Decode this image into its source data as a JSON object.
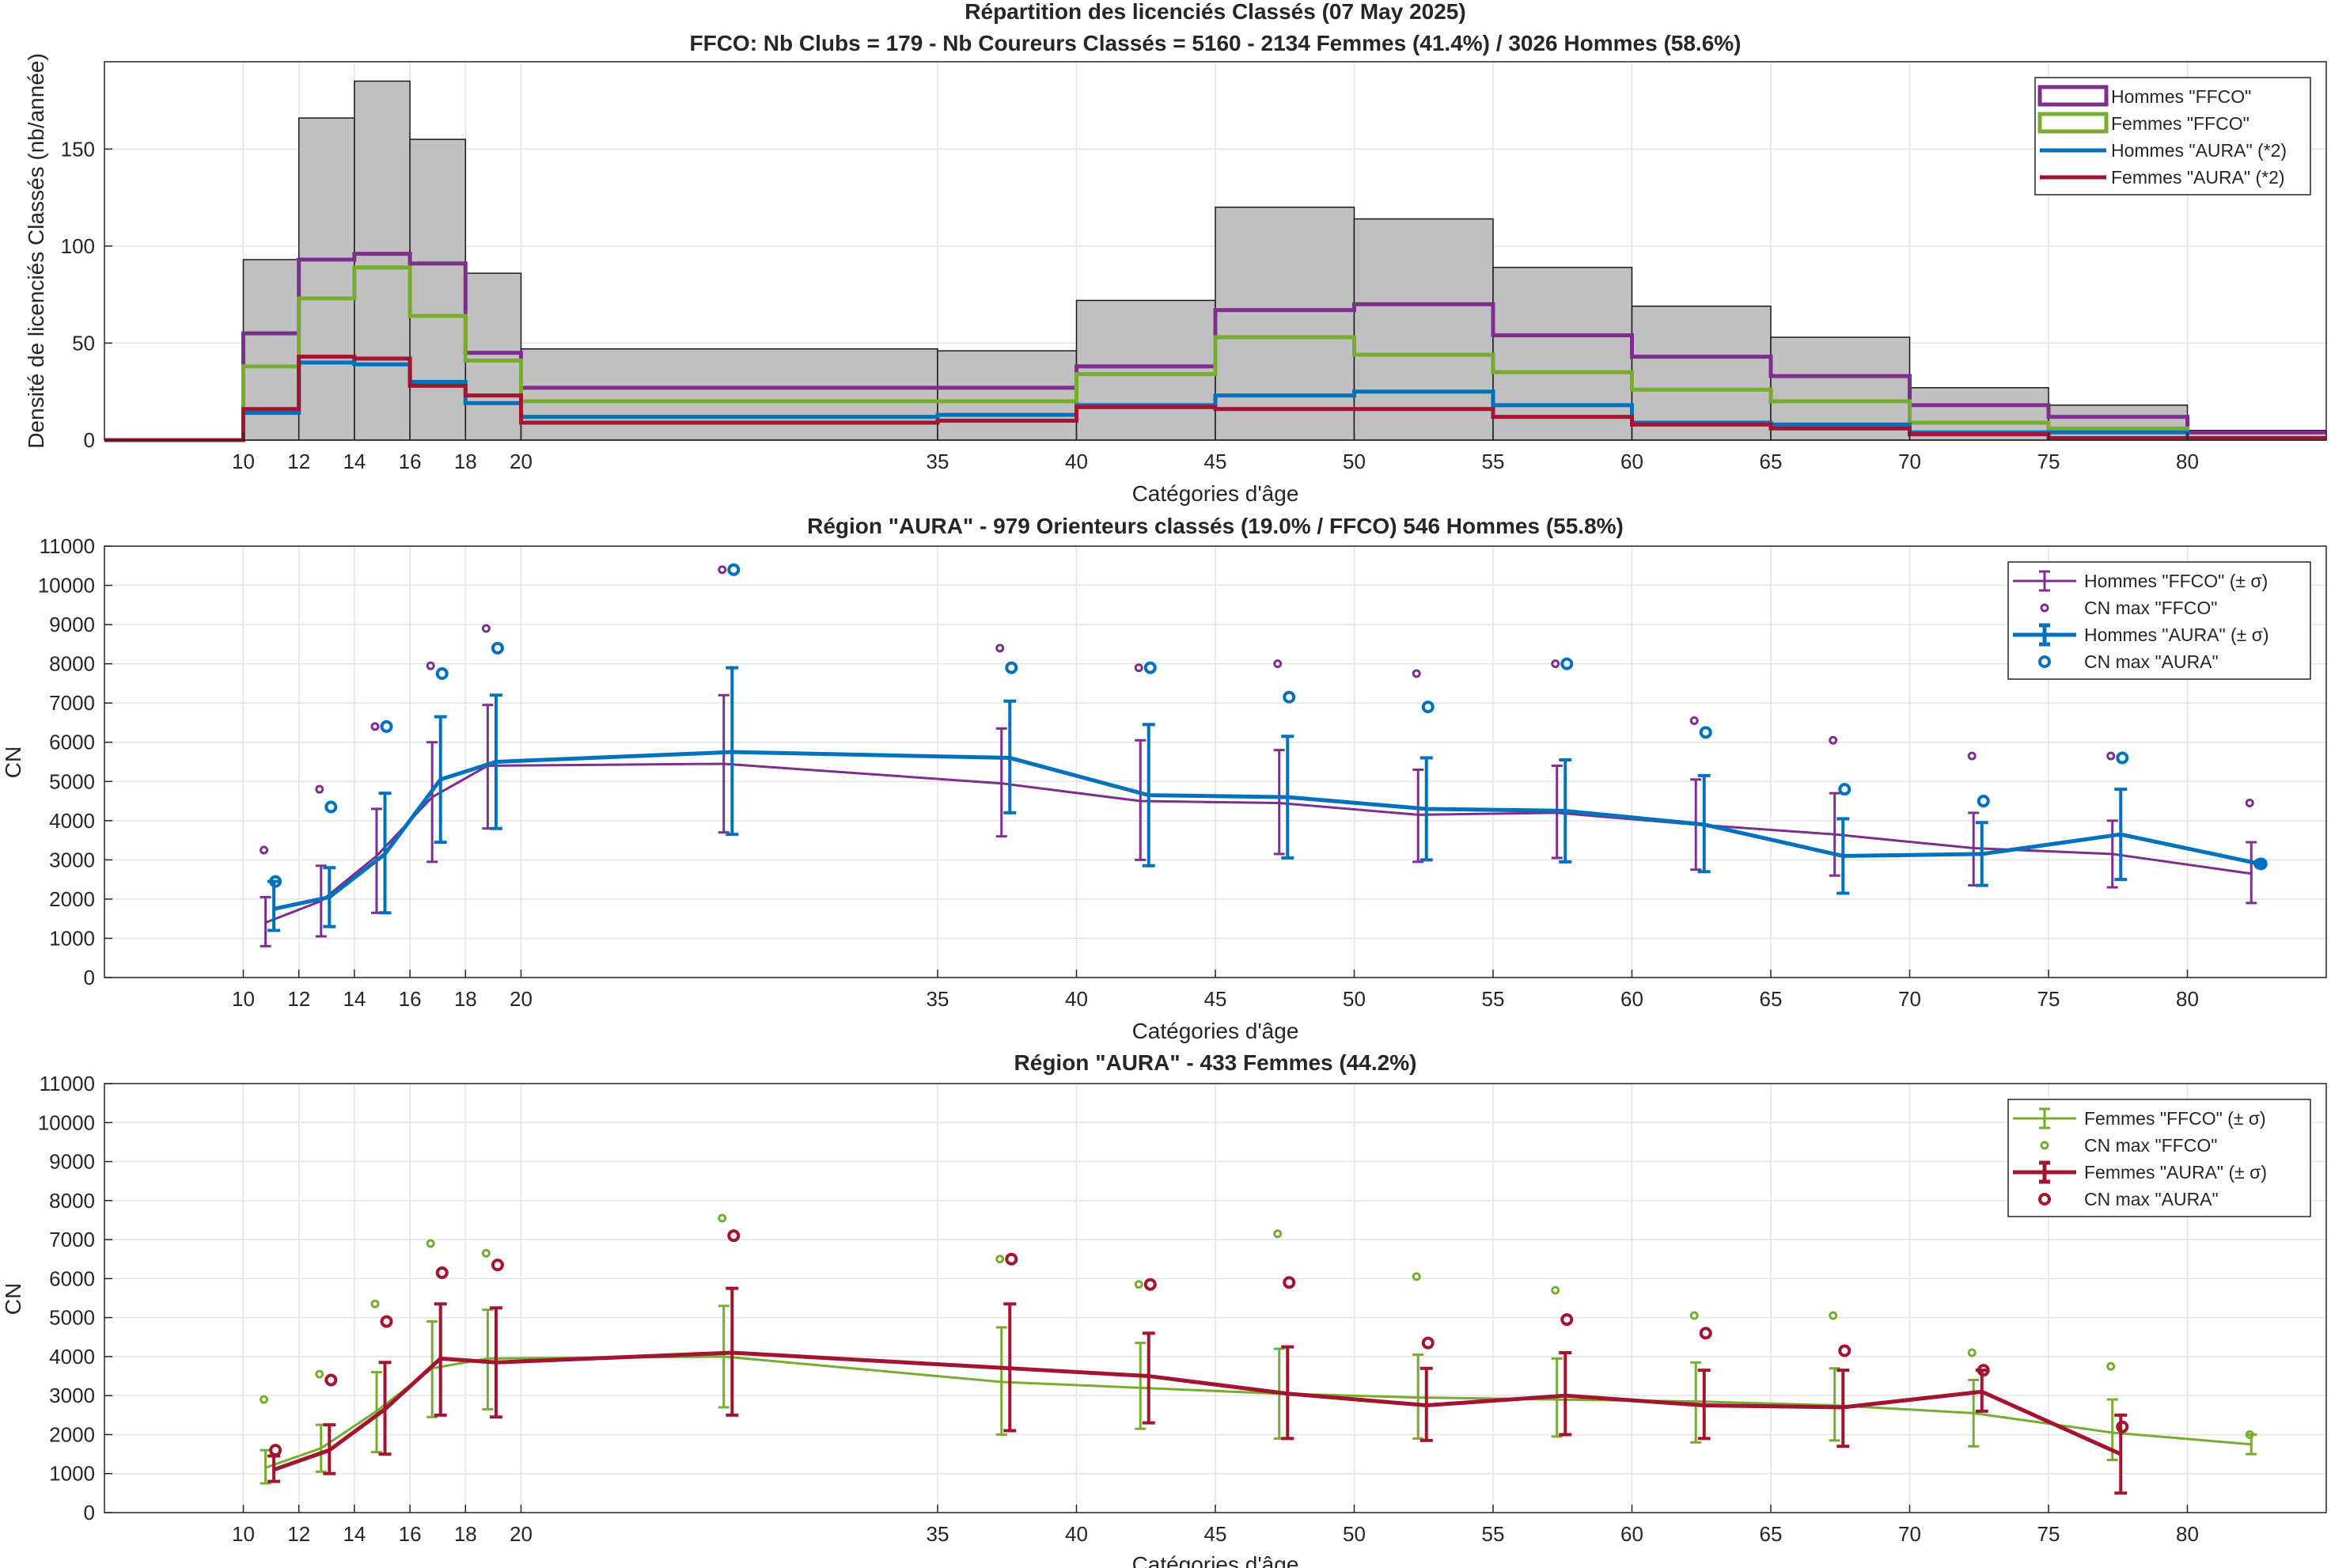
{
  "colors": {
    "hommes_ffco": "#7E2F8E",
    "femmes_ffco": "#77AC30",
    "hommes_aura": "#0072BD",
    "femmes_aura": "#A2142F",
    "bars": "#C0C0C0",
    "grid": "#E3E3E3"
  },
  "chart_data": [
    {
      "type": "bar",
      "title": "Répartition des licenciés Classés (07 May 2025)",
      "subtitle": "FFCO: Nb Clubs = 179   -   Nb Coureurs Classés = 5160   -   2134 Femmes (41.4%) / 3026 Hommes (58.6%)",
      "xlabel": "Catégories d'âge",
      "ylabel": "Densité de licenciés Classés (nb/année)",
      "xlim": [
        5,
        85
      ],
      "ylim": [
        0,
        195
      ],
      "xticks": [
        10,
        12,
        14,
        16,
        18,
        20,
        35,
        40,
        45,
        50,
        55,
        60,
        65,
        70,
        75,
        80
      ],
      "yticks": [
        0,
        50,
        100,
        150
      ],
      "grid": true,
      "legend_position": "top-right",
      "bins": [
        {
          "from": 5,
          "to": 10,
          "total": 0,
          "hommes_ffco": 0,
          "femmes_ffco": 0,
          "hommes_aura": 0,
          "femmes_aura": 0
        },
        {
          "from": 10,
          "to": 12,
          "total": 93,
          "hommes_ffco": 55,
          "femmes_ffco": 38,
          "hommes_aura": 14,
          "femmes_aura": 16
        },
        {
          "from": 12,
          "to": 14,
          "total": 166,
          "hommes_ffco": 93,
          "femmes_ffco": 73,
          "hommes_aura": 40,
          "femmes_aura": 43
        },
        {
          "from": 14,
          "to": 16,
          "total": 185,
          "hommes_ffco": 96,
          "femmes_ffco": 89,
          "hommes_aura": 39,
          "femmes_aura": 42
        },
        {
          "from": 16,
          "to": 18,
          "total": 155,
          "hommes_ffco": 91,
          "femmes_ffco": 64,
          "hommes_aura": 30,
          "femmes_aura": 28
        },
        {
          "from": 18,
          "to": 20,
          "total": 86,
          "hommes_ffco": 45,
          "femmes_ffco": 41,
          "hommes_aura": 19,
          "femmes_aura": 23
        },
        {
          "from": 20,
          "to": 35,
          "total": 47,
          "hommes_ffco": 27,
          "femmes_ffco": 20,
          "hommes_aura": 12,
          "femmes_aura": 9
        },
        {
          "from": 35,
          "to": 40,
          "total": 46,
          "hommes_ffco": 27,
          "femmes_ffco": 20,
          "hommes_aura": 13,
          "femmes_aura": 10
        },
        {
          "from": 40,
          "to": 45,
          "total": 72,
          "hommes_ffco": 38,
          "femmes_ffco": 34,
          "hommes_aura": 18,
          "femmes_aura": 17
        },
        {
          "from": 45,
          "to": 50,
          "total": 120,
          "hommes_ffco": 67,
          "femmes_ffco": 53,
          "hommes_aura": 23,
          "femmes_aura": 16
        },
        {
          "from": 50,
          "to": 55,
          "total": 114,
          "hommes_ffco": 70,
          "femmes_ffco": 44,
          "hommes_aura": 25,
          "femmes_aura": 16
        },
        {
          "from": 55,
          "to": 60,
          "total": 89,
          "hommes_ffco": 54,
          "femmes_ffco": 35,
          "hommes_aura": 18,
          "femmes_aura": 12
        },
        {
          "from": 60,
          "to": 65,
          "total": 69,
          "hommes_ffco": 43,
          "femmes_ffco": 26,
          "hommes_aura": 9,
          "femmes_aura": 8
        },
        {
          "from": 65,
          "to": 70,
          "total": 53,
          "hommes_ffco": 33,
          "femmes_ffco": 20,
          "hommes_aura": 8,
          "femmes_aura": 6
        },
        {
          "from": 70,
          "to": 75,
          "total": 27,
          "hommes_ffco": 18,
          "femmes_ffco": 9,
          "hommes_aura": 4,
          "femmes_aura": 3
        },
        {
          "from": 75,
          "to": 80,
          "total": 18,
          "hommes_ffco": 12,
          "femmes_ffco": 6,
          "hommes_aura": 4,
          "femmes_aura": 1
        },
        {
          "from": 80,
          "to": 85,
          "total": 5,
          "hommes_ffco": 4,
          "femmes_ffco": 1,
          "hommes_aura": 1,
          "femmes_aura": 1
        }
      ],
      "legend": [
        {
          "label": "Hommes \"FFCO\"",
          "color_key": "hommes_ffco",
          "style": "box"
        },
        {
          "label": "Femmes \"FFCO\"",
          "color_key": "femmes_ffco",
          "style": "box"
        },
        {
          "label": "Hommes \"AURA\" (*2)",
          "color_key": "hommes_aura",
          "style": "line"
        },
        {
          "label": "Femmes \"AURA\" (*2)",
          "color_key": "femmes_aura",
          "style": "line"
        }
      ]
    },
    {
      "type": "line",
      "title": "Région \"AURA\"  -  979 Orienteurs classés (19.0% / FFCO)  546 Hommes (55.8%)",
      "xlabel": "Catégories d'âge",
      "ylabel": "CN",
      "xlim": [
        5,
        85
      ],
      "ylim": [
        0,
        11000
      ],
      "xticks": [
        10,
        12,
        14,
        16,
        18,
        20,
        35,
        40,
        45,
        50,
        55,
        60,
        65,
        70,
        75,
        80
      ],
      "yticks": [
        0,
        1000,
        2000,
        3000,
        4000,
        5000,
        6000,
        7000,
        8000,
        9000,
        10000,
        11000
      ],
      "grid": true,
      "legend_position": "top-right",
      "series": [
        {
          "name": "Hommes \"FFCO\" (± σ)",
          "color_key": "hommes_ffco",
          "x": [
            10.8,
            12.8,
            14.8,
            16.8,
            18.8,
            27.3,
            37.3,
            42.3,
            47.3,
            52.3,
            57.3,
            62.3,
            67.3,
            72.3,
            77.3,
            82.3
          ],
          "mean": [
            1400,
            1950,
            3100,
            4600,
            5400,
            5450,
            4950,
            4500,
            4450,
            4150,
            4200,
            3900,
            3650,
            3300,
            3150,
            2650
          ],
          "low": [
            800,
            1050,
            1650,
            2950,
            3800,
            3700,
            3600,
            3000,
            3150,
            2950,
            3050,
            2750,
            2600,
            2350,
            2300,
            1900
          ],
          "high": [
            2050,
            2850,
            4300,
            6000,
            6950,
            7200,
            6350,
            6050,
            5800,
            5300,
            5400,
            5050,
            4700,
            4200,
            4000,
            3450
          ],
          "max": [
            3250,
            4800,
            6400,
            7950,
            8900,
            10400,
            8400,
            7900,
            8000,
            7750,
            8000,
            6550,
            6050,
            5650,
            5650,
            4450
          ]
        },
        {
          "name": "Hommes \"AURA\" (± σ)",
          "color_key": "hommes_aura",
          "x": [
            11.1,
            13.1,
            15.1,
            17.1,
            19.1,
            27.6,
            37.6,
            42.6,
            47.6,
            52.6,
            57.6,
            62.6,
            67.6,
            72.6,
            77.6,
            82.6
          ],
          "mean": [
            1750,
            2050,
            3150,
            5050,
            5500,
            5750,
            5600,
            4650,
            4600,
            4300,
            4250,
            3900,
            3100,
            3150,
            3650,
            2900
          ],
          "low": [
            1200,
            1300,
            1650,
            3450,
            3800,
            3650,
            4200,
            2850,
            3050,
            3000,
            2950,
            2700,
            2150,
            2350,
            2500,
            2900
          ],
          "high": [
            2450,
            2800,
            4700,
            6650,
            7200,
            7900,
            7050,
            6450,
            6150,
            5600,
            5550,
            5150,
            4050,
            3950,
            4800,
            2900
          ],
          "max": [
            2450,
            4350,
            6400,
            7750,
            8400,
            10400,
            7900,
            7900,
            7150,
            6900,
            8000,
            6250,
            4800,
            4500,
            5600,
            2900
          ]
        }
      ],
      "legend": [
        {
          "label": "Hommes \"FFCO\" (± σ)",
          "color_key": "hommes_ffco",
          "style": "errorbar-thin"
        },
        {
          "label": "CN max \"FFCO\"",
          "color_key": "hommes_ffco",
          "style": "circle-small"
        },
        {
          "label": "Hommes \"AURA\" (± σ)",
          "color_key": "hommes_aura",
          "style": "errorbar-thick"
        },
        {
          "label": "CN max \"AURA\"",
          "color_key": "hommes_aura",
          "style": "circle-large"
        }
      ]
    },
    {
      "type": "line",
      "title": "Région \"AURA\"  -  433 Femmes (44.2%)",
      "xlabel": "Catégories d'âge",
      "ylabel": "CN",
      "xlim": [
        5,
        85
      ],
      "ylim": [
        0,
        11000
      ],
      "xticks": [
        10,
        12,
        14,
        16,
        18,
        20,
        35,
        40,
        45,
        50,
        55,
        60,
        65,
        70,
        75,
        80
      ],
      "yticks": [
        0,
        1000,
        2000,
        3000,
        4000,
        5000,
        6000,
        7000,
        8000,
        9000,
        10000,
        11000
      ],
      "grid": true,
      "legend_position": "top-right",
      "series": [
        {
          "name": "Femmes \"FFCO\" (± σ)",
          "color_key": "femmes_ffco",
          "x": [
            10.8,
            12.8,
            14.8,
            16.8,
            18.8,
            27.3,
            37.3,
            42.3,
            47.3,
            52.3,
            57.3,
            62.3,
            67.3,
            72.3,
            77.3,
            82.3
          ],
          "mean": [
            1150,
            1650,
            2600,
            3700,
            3950,
            4000,
            3350,
            3200,
            3050,
            2950,
            2900,
            2850,
            2750,
            2550,
            2050,
            1750
          ],
          "low": [
            750,
            1050,
            1550,
            2450,
            2650,
            2700,
            2000,
            2150,
            1900,
            1900,
            1950,
            1800,
            1850,
            1700,
            1350,
            1500
          ],
          "high": [
            1600,
            2250,
            3600,
            4900,
            5200,
            5300,
            4750,
            4350,
            4200,
            4050,
            3950,
            3850,
            3700,
            3400,
            2900,
            2000
          ],
          "max": [
            2900,
            3550,
            5350,
            6900,
            6650,
            7550,
            6500,
            5850,
            7150,
            6050,
            5700,
            5050,
            5050,
            4100,
            3750,
            2000
          ]
        },
        {
          "name": "Femmes \"AURA\" (± σ)",
          "color_key": "femmes_aura",
          "x": [
            11.1,
            13.1,
            15.1,
            17.1,
            19.1,
            27.6,
            37.6,
            42.6,
            47.6,
            52.6,
            57.6,
            62.6,
            67.6,
            72.6,
            77.6
          ],
          "mean": [
            1100,
            1600,
            2650,
            3950,
            3850,
            4100,
            3700,
            3500,
            3050,
            2750,
            3000,
            2750,
            2700,
            3100,
            1500
          ],
          "low": [
            800,
            1000,
            1500,
            2500,
            2450,
            2500,
            2100,
            2300,
            1900,
            1850,
            2000,
            1900,
            1700,
            2600,
            500
          ],
          "high": [
            1450,
            2250,
            3850,
            5350,
            5250,
            5750,
            5350,
            4600,
            4250,
            3700,
            4100,
            3650,
            3650,
            3650,
            2500
          ],
          "max": [
            1600,
            3400,
            4900,
            6150,
            6350,
            7100,
            6500,
            5850,
            5900,
            4350,
            4950,
            4600,
            4150,
            3650,
            2200
          ]
        }
      ],
      "legend": [
        {
          "label": "Femmes \"FFCO\" (± σ)",
          "color_key": "femmes_ffco",
          "style": "errorbar-thin"
        },
        {
          "label": "CN max \"FFCO\"",
          "color_key": "femmes_ffco",
          "style": "circle-small"
        },
        {
          "label": "Femmes \"AURA\" (± σ)",
          "color_key": "femmes_aura",
          "style": "errorbar-thick"
        },
        {
          "label": "CN max \"AURA\"",
          "color_key": "femmes_aura",
          "style": "circle-large"
        }
      ]
    }
  ]
}
